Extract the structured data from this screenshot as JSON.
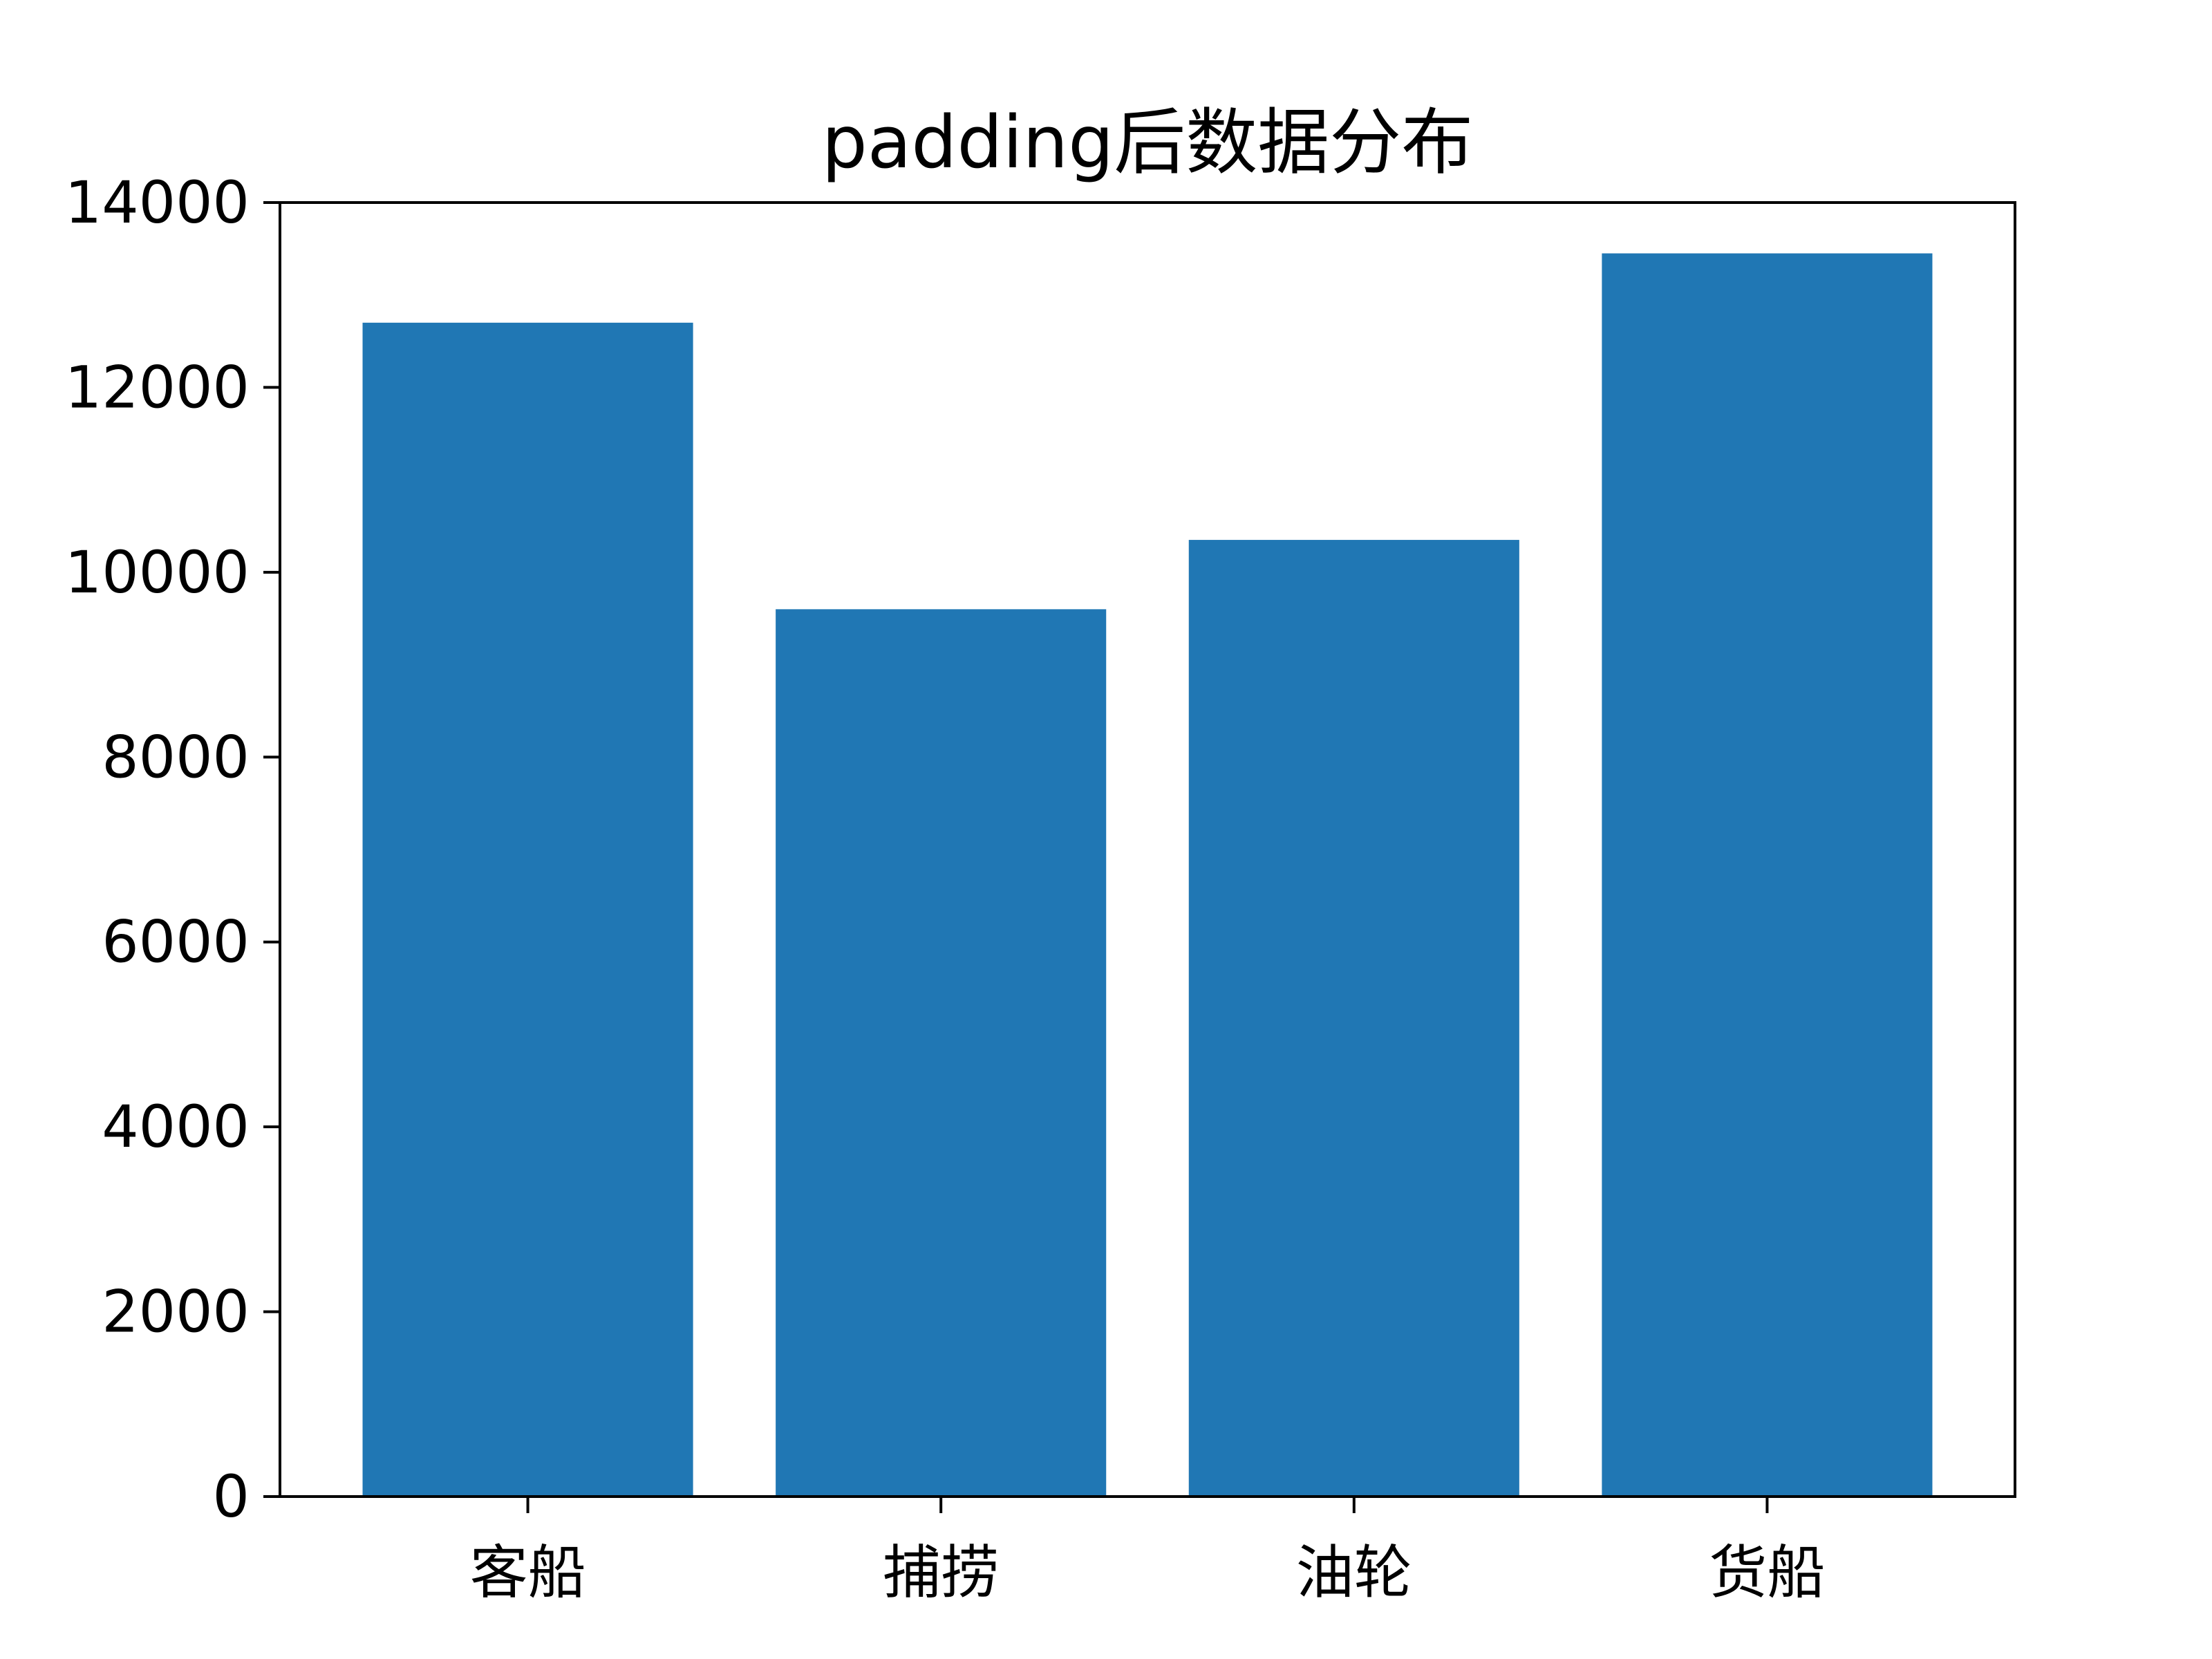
{
  "chart_data": {
    "type": "bar",
    "title": "padding后数据分布",
    "xlabel": "",
    "ylabel": "",
    "categories": [
      "客船",
      "捕捞",
      "油轮",
      "货船"
    ],
    "values": [
      12700,
      9600,
      10350,
      13450
    ],
    "ylim": [
      0,
      14000
    ],
    "yticks": [
      "0",
      "2000",
      "4000",
      "6000",
      "8000",
      "10000",
      "12000",
      "14000"
    ],
    "bar_color": "#2077b4",
    "grid": false,
    "legend": "none"
  }
}
